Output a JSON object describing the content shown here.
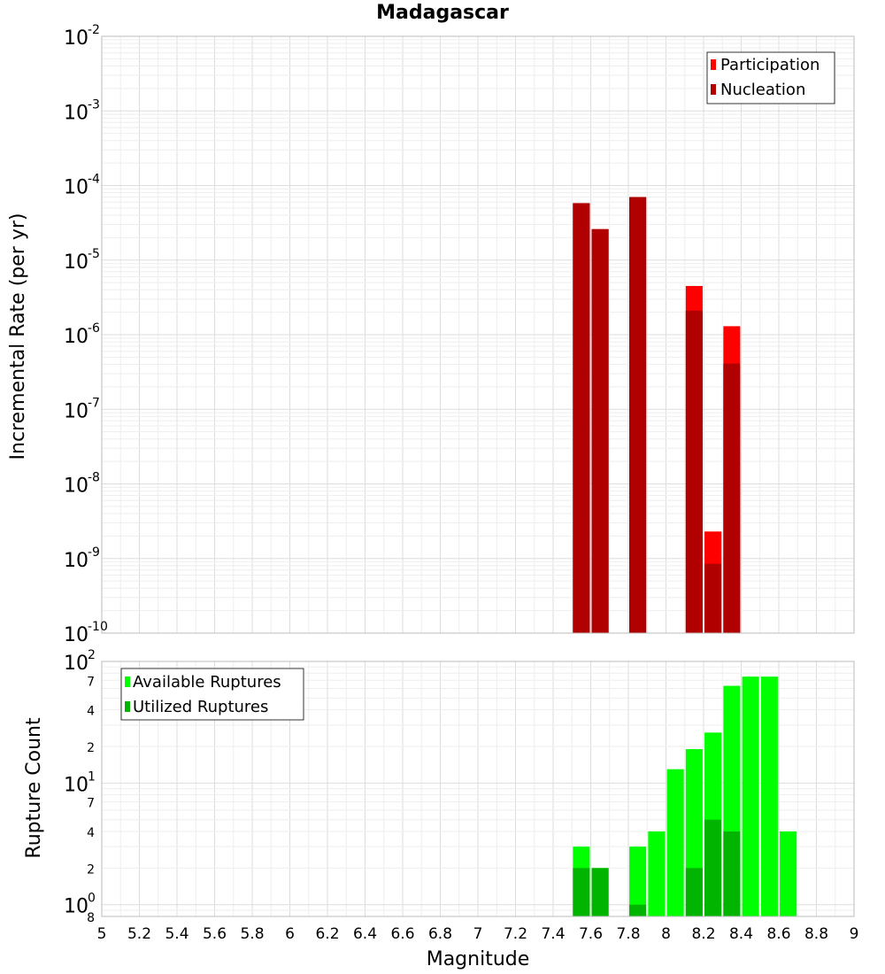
{
  "title": "Madagascar",
  "chart_data": [
    {
      "name": "incremental-rate",
      "type": "bar",
      "scale": "log",
      "ylabel": "Incremental Rate (per yr)",
      "ylim": [
        1e-10,
        0.01
      ],
      "xlim": [
        5,
        9
      ],
      "y_tick_exponents": [
        "-10",
        "-9",
        "-8",
        "-7",
        "-6",
        "-5",
        "-4",
        "-3",
        "-2"
      ],
      "legend": [
        "Participation",
        "Nucleation"
      ],
      "colors": {
        "participation": "#ff0000",
        "nucleation": "#b00000"
      },
      "bars": [
        {
          "x": 7.55,
          "participation": 5.8e-05,
          "nucleation": 5.8e-05
        },
        {
          "x": 7.65,
          "participation": 2.6e-05,
          "nucleation": 2.6e-05
        },
        {
          "x": 7.85,
          "participation": 7e-05,
          "nucleation": 7e-05
        },
        {
          "x": 8.15,
          "participation": 4.5e-06,
          "nucleation": 2.1e-06
        },
        {
          "x": 8.25,
          "participation": 2.3e-09,
          "nucleation": 8.5e-10
        },
        {
          "x": 8.35,
          "participation": 1.3e-06,
          "nucleation": 4.1e-07
        }
      ]
    },
    {
      "name": "rupture-count",
      "type": "bar",
      "scale": "log",
      "ylabel": "Rupture Count",
      "xlabel": "Magnitude",
      "ylim": [
        0.8,
        100
      ],
      "xlim": [
        5,
        9
      ],
      "major_ticks": [
        {
          "base": "10",
          "exp": "0",
          "value": 1
        },
        {
          "base": "10",
          "exp": "1",
          "value": 10
        },
        {
          "base": "10",
          "exp": "2",
          "value": 100
        }
      ],
      "minor_ticks": [
        {
          "label": "8",
          "value": 0.8
        },
        {
          "label": "2",
          "value": 2
        },
        {
          "label": "4",
          "value": 4
        },
        {
          "label": "7",
          "value": 7
        },
        {
          "label": "2",
          "value": 20
        },
        {
          "label": "4",
          "value": 40
        },
        {
          "label": "7",
          "value": 70
        }
      ],
      "legend": [
        "Available Ruptures",
        "Utilized Ruptures"
      ],
      "colors": {
        "available": "#00ff00",
        "utilized": "#00b400"
      },
      "bars": [
        {
          "x": 7.55,
          "available": 3,
          "utilized": 2
        },
        {
          "x": 7.65,
          "available": 2,
          "utilized": 2
        },
        {
          "x": 7.85,
          "available": 3,
          "utilized": 1
        },
        {
          "x": 7.95,
          "available": 4,
          "utilized": 0
        },
        {
          "x": 8.05,
          "available": 13,
          "utilized": 0
        },
        {
          "x": 8.15,
          "available": 19,
          "utilized": 2
        },
        {
          "x": 8.25,
          "available": 26,
          "utilized": 5
        },
        {
          "x": 8.35,
          "available": 63,
          "utilized": 4
        },
        {
          "x": 8.45,
          "available": 75,
          "utilized": 0
        },
        {
          "x": 8.55,
          "available": 75,
          "utilized": 0
        },
        {
          "x": 8.65,
          "available": 4,
          "utilized": 0
        }
      ]
    }
  ],
  "x_axis": {
    "label": "Magnitude",
    "ticks": [
      "5",
      "5.2",
      "5.4",
      "5.6",
      "5.8",
      "6",
      "6.2",
      "6.4",
      "6.6",
      "6.8",
      "7",
      "7.2",
      "7.4",
      "7.6",
      "7.8",
      "8",
      "8.2",
      "8.4",
      "8.6",
      "8.8",
      "9"
    ]
  }
}
